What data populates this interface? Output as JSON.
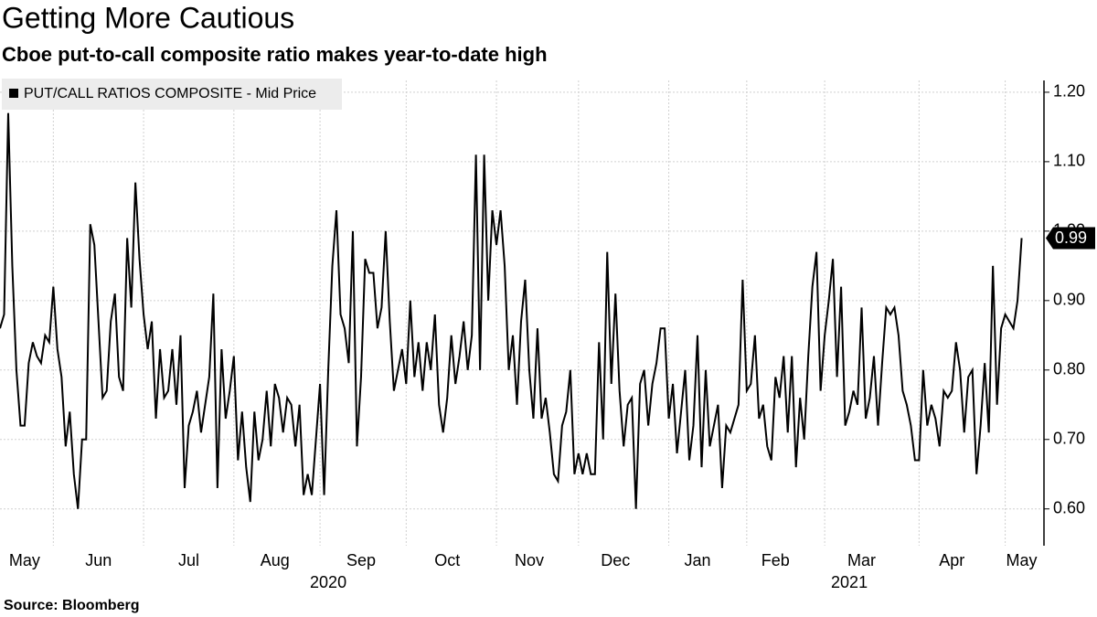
{
  "chart_data": {
    "type": "line",
    "title": "Getting More Cautious",
    "subtitle": "Cboe put-to-call composite ratio makes year-to-date high",
    "source": "Source: Bloomberg",
    "series": [
      {
        "name": "PUT/CALL RATIOS COMPOSITE - Mid Price",
        "color": "#000000",
        "values": [
          0.86,
          0.88,
          1.17,
          0.95,
          0.8,
          0.72,
          0.72,
          0.81,
          0.84,
          0.82,
          0.81,
          0.85,
          0.84,
          0.92,
          0.83,
          0.79,
          0.69,
          0.74,
          0.65,
          0.6,
          0.7,
          0.7,
          1.01,
          0.98,
          0.87,
          0.76,
          0.77,
          0.87,
          0.91,
          0.79,
          0.77,
          0.99,
          0.89,
          1.07,
          0.96,
          0.88,
          0.83,
          0.87,
          0.73,
          0.83,
          0.76,
          0.77,
          0.83,
          0.75,
          0.85,
          0.63,
          0.72,
          0.74,
          0.77,
          0.71,
          0.75,
          0.79,
          0.91,
          0.63,
          0.83,
          0.73,
          0.77,
          0.82,
          0.67,
          0.74,
          0.66,
          0.61,
          0.74,
          0.67,
          0.7,
          0.77,
          0.69,
          0.78,
          0.76,
          0.71,
          0.76,
          0.75,
          0.69,
          0.75,
          0.62,
          0.65,
          0.62,
          0.7,
          0.78,
          0.62,
          0.8,
          0.95,
          1.03,
          0.88,
          0.86,
          0.81,
          1.0,
          0.69,
          0.79,
          0.96,
          0.94,
          0.94,
          0.86,
          0.89,
          1.0,
          0.87,
          0.77,
          0.8,
          0.83,
          0.78,
          0.9,
          0.79,
          0.84,
          0.77,
          0.84,
          0.8,
          0.88,
          0.75,
          0.71,
          0.76,
          0.85,
          0.78,
          0.82,
          0.87,
          0.8,
          0.85,
          1.11,
          0.8,
          1.11,
          0.9,
          1.03,
          0.98,
          1.03,
          0.95,
          0.8,
          0.85,
          0.75,
          0.87,
          0.93,
          0.8,
          0.73,
          0.86,
          0.73,
          0.76,
          0.71,
          0.65,
          0.64,
          0.72,
          0.74,
          0.8,
          0.65,
          0.68,
          0.65,
          0.68,
          0.65,
          0.65,
          0.84,
          0.7,
          0.97,
          0.78,
          0.91,
          0.77,
          0.69,
          0.75,
          0.76,
          0.6,
          0.78,
          0.8,
          0.72,
          0.78,
          0.81,
          0.86,
          0.86,
          0.73,
          0.78,
          0.68,
          0.74,
          0.8,
          0.67,
          0.72,
          0.85,
          0.66,
          0.8,
          0.69,
          0.72,
          0.75,
          0.63,
          0.72,
          0.71,
          0.73,
          0.75,
          0.93,
          0.77,
          0.78,
          0.85,
          0.73,
          0.75,
          0.69,
          0.67,
          0.79,
          0.76,
          0.82,
          0.71,
          0.82,
          0.66,
          0.76,
          0.7,
          0.82,
          0.92,
          0.97,
          0.77,
          0.85,
          0.9,
          0.96,
          0.79,
          0.92,
          0.72,
          0.74,
          0.77,
          0.75,
          0.89,
          0.73,
          0.76,
          0.82,
          0.72,
          0.81,
          0.89,
          0.88,
          0.89,
          0.85,
          0.77,
          0.75,
          0.72,
          0.67,
          0.67,
          0.8,
          0.72,
          0.75,
          0.73,
          0.69,
          0.77,
          0.76,
          0.77,
          0.84,
          0.8,
          0.71,
          0.79,
          0.8,
          0.65,
          0.72,
          0.81,
          0.71,
          0.95,
          0.75,
          0.86,
          0.88,
          0.87,
          0.86,
          0.9,
          0.99
        ]
      }
    ],
    "xlim": [
      0,
      254
    ],
    "xgrid": [
      13,
      35,
      57,
      78,
      99,
      121,
      141,
      163,
      182,
      201,
      224,
      245
    ],
    "xticks": [
      {
        "value": 6,
        "label": "May"
      },
      {
        "value": 24,
        "label": "Jun"
      },
      {
        "value": 46,
        "label": "Jul"
      },
      {
        "value": 67,
        "label": "Aug"
      },
      {
        "value": 88,
        "label": "Sep"
      },
      {
        "value": 109,
        "label": "Oct"
      },
      {
        "value": 129,
        "label": "Nov"
      },
      {
        "value": 150,
        "label": "Dec"
      },
      {
        "value": 170,
        "label": "Jan"
      },
      {
        "value": 189,
        "label": "Feb"
      },
      {
        "value": 210,
        "label": "Mar"
      },
      {
        "value": 232,
        "label": "Apr"
      },
      {
        "value": 249,
        "label": "May"
      }
    ],
    "year_labels": [
      {
        "value": 80,
        "label": "2020"
      },
      {
        "value": 207,
        "label": "2021"
      }
    ],
    "ylim": [
      0.547,
      1.217
    ],
    "yticks": [
      {
        "value": 0.6,
        "label": "0.60"
      },
      {
        "value": 0.7,
        "label": "0.70"
      },
      {
        "value": 0.8,
        "label": "0.80"
      },
      {
        "value": 0.9,
        "label": "0.90"
      },
      {
        "value": 1.0,
        "label": "1.00"
      },
      {
        "value": 1.1,
        "label": "1.10"
      },
      {
        "value": 1.2,
        "label": "1.20"
      }
    ],
    "grid": true,
    "legend": "top-left"
  }
}
